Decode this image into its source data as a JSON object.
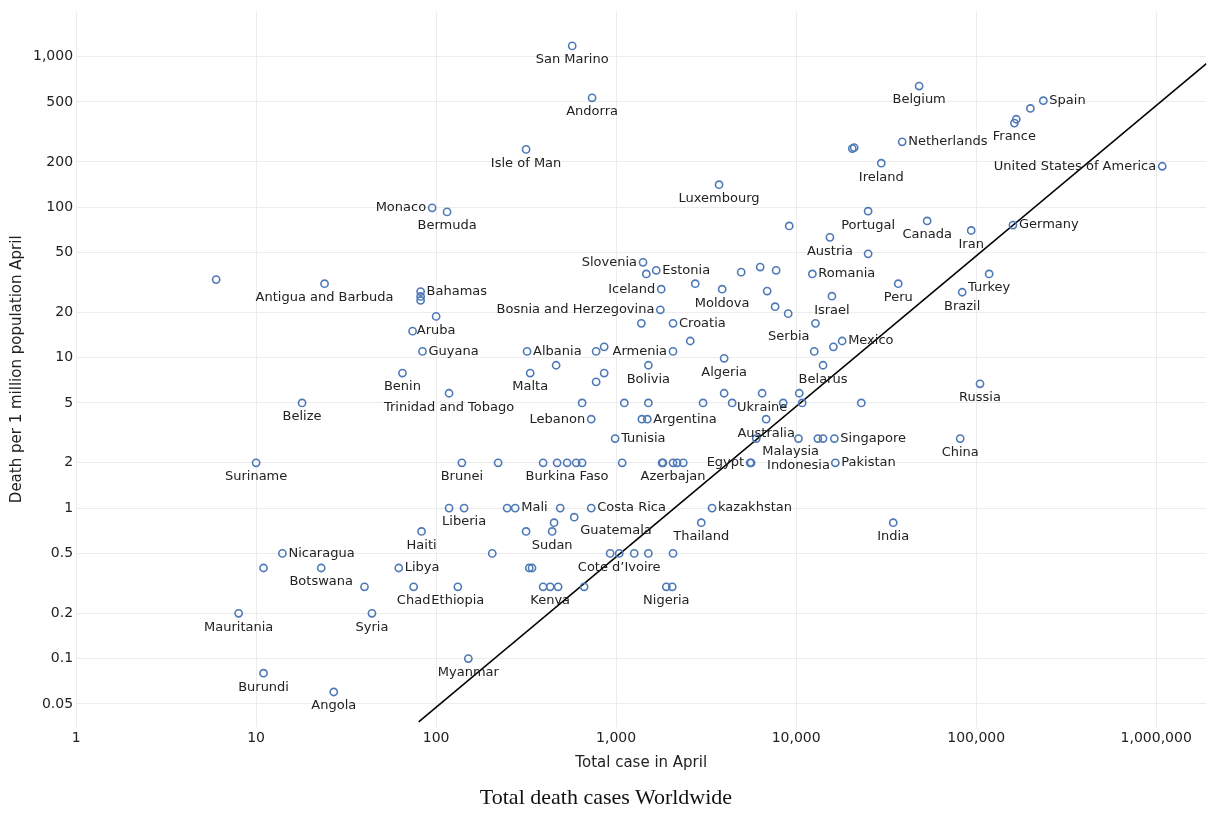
{
  "chart_data": {
    "type": "scatter",
    "title": "Total death cases Worldwide",
    "xlabel": "Total case in April",
    "ylabel": "Death per 1 million population April",
    "log": "xy",
    "grid": true,
    "legend": false,
    "xlim": [
      1,
      1900000
    ],
    "ylim": [
      0.035,
      2000
    ],
    "xticks": [
      1,
      10,
      100,
      {
        "value": 1000,
        "label": "1,000"
      },
      {
        "value": 10000,
        "label": "10,000"
      },
      {
        "value": 100000,
        "label": "100,000"
      },
      {
        "value": 1000000,
        "label": "1,000,000"
      }
    ],
    "yticks": [
      0.05,
      0.1,
      0.2,
      0.5,
      1,
      2,
      5,
      10,
      20,
      50,
      100,
      200,
      500,
      {
        "value": 1000,
        "label": "1,000"
      }
    ],
    "series": [
      {
        "type": "scatter",
        "marker": "circle",
        "color": "#4e79b7",
        "x": [
          570,
          735,
          316,
          95,
          115,
          3730,
          48200,
          236000,
          200000,
          167000,
          163000,
          38800,
          20500,
          21000,
          29700,
          1080000,
          25100,
          9150,
          53400,
          93800,
          160000,
          15400,
          25100,
          1670,
          1410,
          1470,
          4950,
          6310,
          7740,
          12300,
          118000,
          36900,
          2750,
          1780,
          3880,
          6900,
          83600,
          15800,
          7640,
          9030,
          1760,
          1380,
          2070,
          12800,
          6,
          24,
          82,
          82,
          82,
          100,
          74,
          84,
          320,
          774,
          858,
          2070,
          2580,
          3980,
          12600,
          16100,
          18000,
          14100,
          65,
          333,
          464,
          858,
          774,
          1510,
          118,
          3980,
          6470,
          10400,
          18,
          647,
          1110,
          1510,
          3040,
          4410,
          8470,
          10800,
          23000,
          105000,
          727,
          1390,
          1490,
          6810,
          987,
          6000,
          10300,
          13200,
          14100,
          16300,
          81500,
          10,
          139,
          221,
          393,
          470,
          534,
          600,
          647,
          1080,
          1800,
          1820,
          2070,
          2180,
          2360,
          5550,
          5620,
          16500,
          118,
          143,
          248,
          275,
          489,
          727,
          3410,
          452,
          585,
          316,
          441,
          83,
          2970,
          34600,
          205,
          926,
          1040,
          1260,
          1510,
          2070,
          14,
          62,
          329,
          341,
          11,
          23,
          75,
          132,
          393,
          430,
          476,
          664,
          1900,
          2050,
          40,
          151,
          8,
          44,
          11,
          27
        ],
        "values": [
          1180,
          533,
          242,
          99,
          93,
          141,
          638,
          510,
          453,
          384,
          362,
          272,
          245,
          249,
          196,
          187,
          94,
          75,
          81,
          70,
          76,
          63,
          49,
          38,
          43,
          36,
          37,
          40,
          38,
          36,
          36,
          31,
          31,
          28.5,
          28.5,
          27.7,
          27.2,
          25.6,
          21.8,
          19.6,
          20.8,
          16.9,
          16.9,
          16.9,
          33,
          31,
          27.5,
          25.5,
          24,
          18.8,
          15,
          11,
          11,
          11,
          11.8,
          11,
          12.9,
          9.9,
          11,
          11.8,
          12.9,
          8.9,
          7.9,
          7.9,
          8.9,
          7.9,
          6.9,
          8.9,
          5.8,
          5.8,
          5.8,
          5.8,
          5,
          5,
          5,
          5,
          5,
          5,
          5,
          5,
          5,
          6.7,
          3.9,
          3.9,
          3.9,
          3.9,
          2.9,
          2.9,
          2.9,
          2.9,
          2.9,
          2.9,
          2.9,
          2,
          2,
          2,
          2,
          2,
          2,
          2,
          2,
          2,
          2,
          2,
          2,
          2,
          2,
          2,
          2,
          2,
          1,
          1,
          1,
          1,
          1,
          1,
          1,
          0.8,
          0.87,
          0.7,
          0.7,
          0.7,
          0.8,
          0.8,
          0.5,
          0.5,
          0.5,
          0.5,
          0.5,
          0.5,
          0.5,
          0.4,
          0.4,
          0.4,
          0.4,
          0.4,
          0.3,
          0.3,
          0.3,
          0.3,
          0.3,
          0.3,
          0.3,
          0.3,
          0.3,
          0.1,
          0.2,
          0.2,
          0.08,
          0.06
        ]
      },
      {
        "type": "line",
        "marker": "none",
        "line_style": "solid",
        "color": "#000000",
        "x": [
          80,
          1900000
        ],
        "values": [
          0.038,
          900
        ]
      }
    ],
    "annotations": [
      {
        "text": "San Marino",
        "x": 570,
        "y": 1180
      },
      {
        "text": "Andorra",
        "x": 735,
        "y": 533
      },
      {
        "text": "Isle of Man",
        "x": 316,
        "y": 242
      },
      {
        "text": "Monaco",
        "x": 95,
        "y": 99
      },
      {
        "text": "Bermuda",
        "x": 115,
        "y": 93
      },
      {
        "text": "Luxembourg",
        "x": 3730,
        "y": 141
      },
      {
        "text": "Belgium",
        "x": 48200,
        "y": 638
      },
      {
        "text": "Spain",
        "x": 236000,
        "y": 510
      },
      {
        "text": "France",
        "x": 163000,
        "y": 362
      },
      {
        "text": "Netherlands",
        "x": 38800,
        "y": 272
      },
      {
        "text": "Ireland",
        "x": 29700,
        "y": 196
      },
      {
        "text": "United States of America",
        "x": 1080000,
        "y": 187
      },
      {
        "text": "Portugal",
        "x": 25100,
        "y": 94
      },
      {
        "text": "Canada",
        "x": 53400,
        "y": 81
      },
      {
        "text": "Iran",
        "x": 93800,
        "y": 70
      },
      {
        "text": "Germany",
        "x": 160000,
        "y": 76
      },
      {
        "text": "Austria",
        "x": 15400,
        "y": 63
      },
      {
        "text": "Estonia",
        "x": 1670,
        "y": 38
      },
      {
        "text": "Slovenia",
        "x": 1410,
        "y": 43
      },
      {
        "text": "Romania",
        "x": 12300,
        "y": 36
      },
      {
        "text": "Turkey",
        "x": 118000,
        "y": 36
      },
      {
        "text": "Iceland",
        "x": 1780,
        "y": 28.5
      },
      {
        "text": "Moldova",
        "x": 3880,
        "y": 28.5
      },
      {
        "text": "Peru",
        "x": 36900,
        "y": 31
      },
      {
        "text": "Brazil",
        "x": 83600,
        "y": 27.2
      },
      {
        "text": "Israel",
        "x": 15800,
        "y": 25.6
      },
      {
        "text": "Serbia",
        "x": 12800,
        "y": 16.9
      },
      {
        "text": "Bosnia and Herzegovina",
        "x": 1760,
        "y": 20.8
      },
      {
        "text": "Croatia",
        "x": 2070,
        "y": 16.9
      },
      {
        "text": "Antigua and Barbuda",
        "x": 24,
        "y": 31
      },
      {
        "text": "Bahamas",
        "x": 82,
        "y": 27.5
      },
      {
        "text": "Aruba",
        "x": 100,
        "y": 18.8
      },
      {
        "text": "Guyana",
        "x": 84,
        "y": 11
      },
      {
        "text": "Albania",
        "x": 320,
        "y": 11
      },
      {
        "text": "Armenia",
        "x": 2070,
        "y": 11
      },
      {
        "text": "Mexico",
        "x": 18000,
        "y": 12.9
      },
      {
        "text": "Belarus",
        "x": 14100,
        "y": 8.9
      },
      {
        "text": "Algeria",
        "x": 3980,
        "y": 9.9
      },
      {
        "text": "Ukraine",
        "x": 6470,
        "y": 5.8
      },
      {
        "text": "Malta",
        "x": 333,
        "y": 7.9
      },
      {
        "text": "Bolivia",
        "x": 1510,
        "y": 8.9
      },
      {
        "text": "Benin",
        "x": 65,
        "y": 7.9
      },
      {
        "text": "Trinidad and Tobago",
        "x": 118,
        "y": 5.8
      },
      {
        "text": "Belize",
        "x": 18,
        "y": 5
      },
      {
        "text": "Russia",
        "x": 105000,
        "y": 6.7
      },
      {
        "text": "Lebanon",
        "x": 727,
        "y": 3.9
      },
      {
        "text": "Argentina",
        "x": 1490,
        "y": 3.9
      },
      {
        "text": "Australia",
        "x": 6810,
        "y": 3.9
      },
      {
        "text": "Tunisia",
        "x": 987,
        "y": 2.9
      },
      {
        "text": "Malaysia",
        "x": 6000,
        "y": 2.9
      },
      {
        "text": "Singapore",
        "x": 16300,
        "y": 2.9
      },
      {
        "text": "Indonesia",
        "x": 10300,
        "y": 2.9
      },
      {
        "text": "China",
        "x": 81500,
        "y": 2.9
      },
      {
        "text": "Suriname",
        "x": 10,
        "y": 2
      },
      {
        "text": "Brunei",
        "x": 139,
        "y": 2
      },
      {
        "text": "Burkina Faso",
        "x": 534,
        "y": 2
      },
      {
        "text": "Azerbajan",
        "x": 2070,
        "y": 2
      },
      {
        "text": "Egypt",
        "x": 5550,
        "y": 2
      },
      {
        "text": "Pakistan",
        "x": 16500,
        "y": 2
      },
      {
        "text": "Liberia",
        "x": 143,
        "y": 1
      },
      {
        "text": "Mali",
        "x": 275,
        "y": 1
      },
      {
        "text": "Costa Rica",
        "x": 727,
        "y": 1
      },
      {
        "text": "kazakhstan",
        "x": 3410,
        "y": 1
      },
      {
        "text": "Guatemala",
        "x": 585,
        "y": 0.87
      },
      {
        "text": "Thailand",
        "x": 2970,
        "y": 0.8
      },
      {
        "text": "India",
        "x": 34600,
        "y": 0.8
      },
      {
        "text": "Haiti",
        "x": 83,
        "y": 0.7
      },
      {
        "text": "Sudan",
        "x": 441,
        "y": 0.7
      },
      {
        "text": "Nicaragua",
        "x": 14,
        "y": 0.5
      },
      {
        "text": "Cote d’Ivoire",
        "x": 1040,
        "y": 0.5
      },
      {
        "text": "Libya",
        "x": 62,
        "y": 0.4
      },
      {
        "text": "Botswana",
        "x": 23,
        "y": 0.4
      },
      {
        "text": "Chad",
        "x": 75,
        "y": 0.3
      },
      {
        "text": "Ethiopia",
        "x": 132,
        "y": 0.3
      },
      {
        "text": "Kenya",
        "x": 430,
        "y": 0.3
      },
      {
        "text": "Nigeria",
        "x": 1900,
        "y": 0.3
      },
      {
        "text": "Mauritania",
        "x": 8,
        "y": 0.2
      },
      {
        "text": "Syria",
        "x": 44,
        "y": 0.2
      },
      {
        "text": "Myanmar",
        "x": 151,
        "y": 0.1
      },
      {
        "text": "Burundi",
        "x": 11,
        "y": 0.08
      },
      {
        "text": "Angola",
        "x": 27,
        "y": 0.06
      }
    ]
  }
}
